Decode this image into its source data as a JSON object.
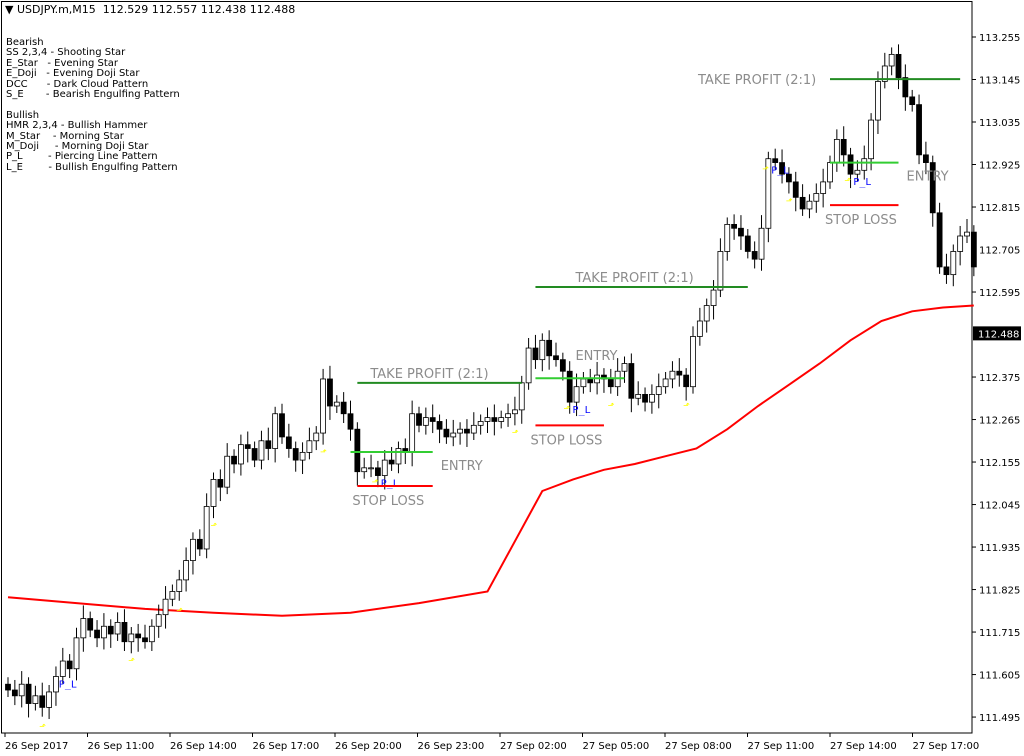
{
  "header": {
    "symbol": "USDJPY.m,M15",
    "ohlc": "112.529 112.557 112.438 112.488",
    "menu_icon": "triangle-down-icon"
  },
  "legend": {
    "bearish_title": "Bearish",
    "bearish": [
      "SS 2,3,4 - Shooting Star",
      "E_Star   - Evening Star",
      "E_Doji   - Evening Doji Star",
      "DCC      - Dark Cloud Pattern",
      "S_E       - Bearish Engulfing Pattern"
    ],
    "bullish_title": "Bullish",
    "bullish": [
      "HMR 2,3,4 - Bullish Hammer",
      "M_Star    - Morning Star",
      "M_Doji     - Morning Doji Star",
      "P_L        - Piercing Line Pattern",
      "L_E        - Bullish Engulfing Pattern"
    ]
  },
  "colors": {
    "bull_body": "#ffffff",
    "bear_body": "#000000",
    "ma": "#ff0000",
    "take_profit": "#228b22",
    "entry": "#32cd32",
    "stop_loss": "#ff0000",
    "label_text": "#8c8c8c",
    "pattern_label": "#0000ff",
    "arrow": "#ffff00"
  },
  "chart_data": {
    "type": "candlestick",
    "timeframe": "M15",
    "ylim": [
      111.44,
      113.33
    ],
    "y_ticks": [
      "113.255",
      "113.145",
      "113.035",
      "112.925",
      "112.815",
      "112.705",
      "112.595",
      "112.375",
      "112.265",
      "112.155",
      "112.045",
      "111.935",
      "111.825",
      "111.715",
      "111.605",
      "111.495"
    ],
    "current_price": "112.488",
    "x_ticks": [
      "26 Sep 2017",
      "26 Sep 11:00",
      "26 Sep 14:00",
      "26 Sep 17:00",
      "26 Sep 20:00",
      "26 Sep 23:00",
      "27 Sep 02:00",
      "27 Sep 05:00",
      "27 Sep 08:00",
      "27 Sep 11:00",
      "27 Sep 14:00",
      "27 Sep 17:00"
    ],
    "first_open": 111.58,
    "closes": [
      111.565,
      111.55,
      111.58,
      111.53,
      111.55,
      111.52,
      111.56,
      111.6,
      111.64,
      111.62,
      111.7,
      111.75,
      111.72,
      111.7,
      111.73,
      111.71,
      111.74,
      111.69,
      111.71,
      111.7,
      111.69,
      111.73,
      111.76,
      111.8,
      111.82,
      111.85,
      111.9,
      111.955,
      111.93,
      112.04,
      112.11,
      112.09,
      112.17,
      112.15,
      112.2,
      112.19,
      112.16,
      112.21,
      112.19,
      112.28,
      112.22,
      112.19,
      112.16,
      112.18,
      112.21,
      112.23,
      112.37,
      112.3,
      112.31,
      112.28,
      112.24,
      112.13,
      112.14,
      112.14,
      112.12,
      112.16,
      112.15,
      112.19,
      112.18,
      112.28,
      112.25,
      112.27,
      112.26,
      112.24,
      112.22,
      112.23,
      112.24,
      112.23,
      112.25,
      112.26,
      112.27,
      112.26,
      112.27,
      112.28,
      112.29,
      112.36,
      112.45,
      112.42,
      112.47,
      112.43,
      112.42,
      112.39,
      112.31,
      112.35,
      112.37,
      112.36,
      112.38,
      112.37,
      112.35,
      112.39,
      112.41,
      112.32,
      112.33,
      112.31,
      112.33,
      112.35,
      112.37,
      112.39,
      112.38,
      112.35,
      112.48,
      112.52,
      112.56,
      112.6,
      112.7,
      112.77,
      112.76,
      112.74,
      112.7,
      112.68,
      112.76,
      112.94,
      112.93,
      112.9,
      112.88,
      112.84,
      112.81,
      112.83,
      112.85,
      112.88,
      112.93,
      112.99,
      112.95,
      112.9,
      112.91,
      112.94,
      113.04,
      113.14,
      113.18,
      113.21,
      113.15,
      113.1,
      113.08,
      112.95,
      112.93,
      112.8,
      112.66,
      112.64,
      112.7,
      112.74,
      112.75,
      112.66
    ],
    "moving_average": {
      "every_n_candles": 10,
      "values": [
        111.805,
        111.79,
        111.775,
        111.765,
        111.757,
        111.765,
        111.79,
        111.82,
        111.85,
        111.885,
        111.915,
        111.945,
        111.97,
        111.995,
        112.02,
        112.05
      ]
    },
    "ma_tail": [
      112.08,
      112.11,
      112.135,
      112.15,
      112.17,
      112.19,
      112.24,
      112.3,
      112.355,
      112.41,
      112.47,
      112.52,
      112.545,
      112.555,
      112.56
    ],
    "pattern_marks": [
      {
        "candle": 8,
        "label": "P_L"
      },
      {
        "candle": 55,
        "label": "P_L"
      },
      {
        "candle": 83,
        "label": "P_L"
      },
      {
        "candle": 112,
        "label": "P_L"
      },
      {
        "candle": 124,
        "label": "P_L"
      }
    ],
    "arrow_candles": [
      5,
      18,
      25,
      30,
      46,
      56,
      74,
      84,
      88,
      99,
      112,
      114,
      124
    ],
    "setups": [
      {
        "tp": 112.36,
        "entry": 112.181,
        "sl": 112.093,
        "tp_range": [
          51,
          75
        ],
        "entry_range": [
          50,
          62
        ],
        "sl_range": [
          51,
          62
        ],
        "tp_label": "TAKE PROFIT (2:1)",
        "entry_label": "ENTRY",
        "sl_label": "STOP LOSS"
      },
      {
        "tp": 112.608,
        "entry": 112.372,
        "sl": 112.25,
        "tp_range": [
          77,
          108
        ],
        "entry_range": [
          77,
          90
        ],
        "sl_range": [
          77,
          87
        ],
        "tp_label": "TAKE PROFIT (2:1)",
        "entry_label": "ENTRY",
        "sl_label": "STOP LOSS"
      },
      {
        "tp": 113.146,
        "entry": 112.93,
        "sl": 112.82,
        "tp_range": [
          120,
          139
        ],
        "entry_range": [
          120,
          130
        ],
        "sl_range": [
          120,
          130
        ],
        "tp_label": "TAKE PROFIT (2:1)",
        "entry_label": "ENTRY",
        "sl_label": "STOP LOSS"
      }
    ]
  }
}
